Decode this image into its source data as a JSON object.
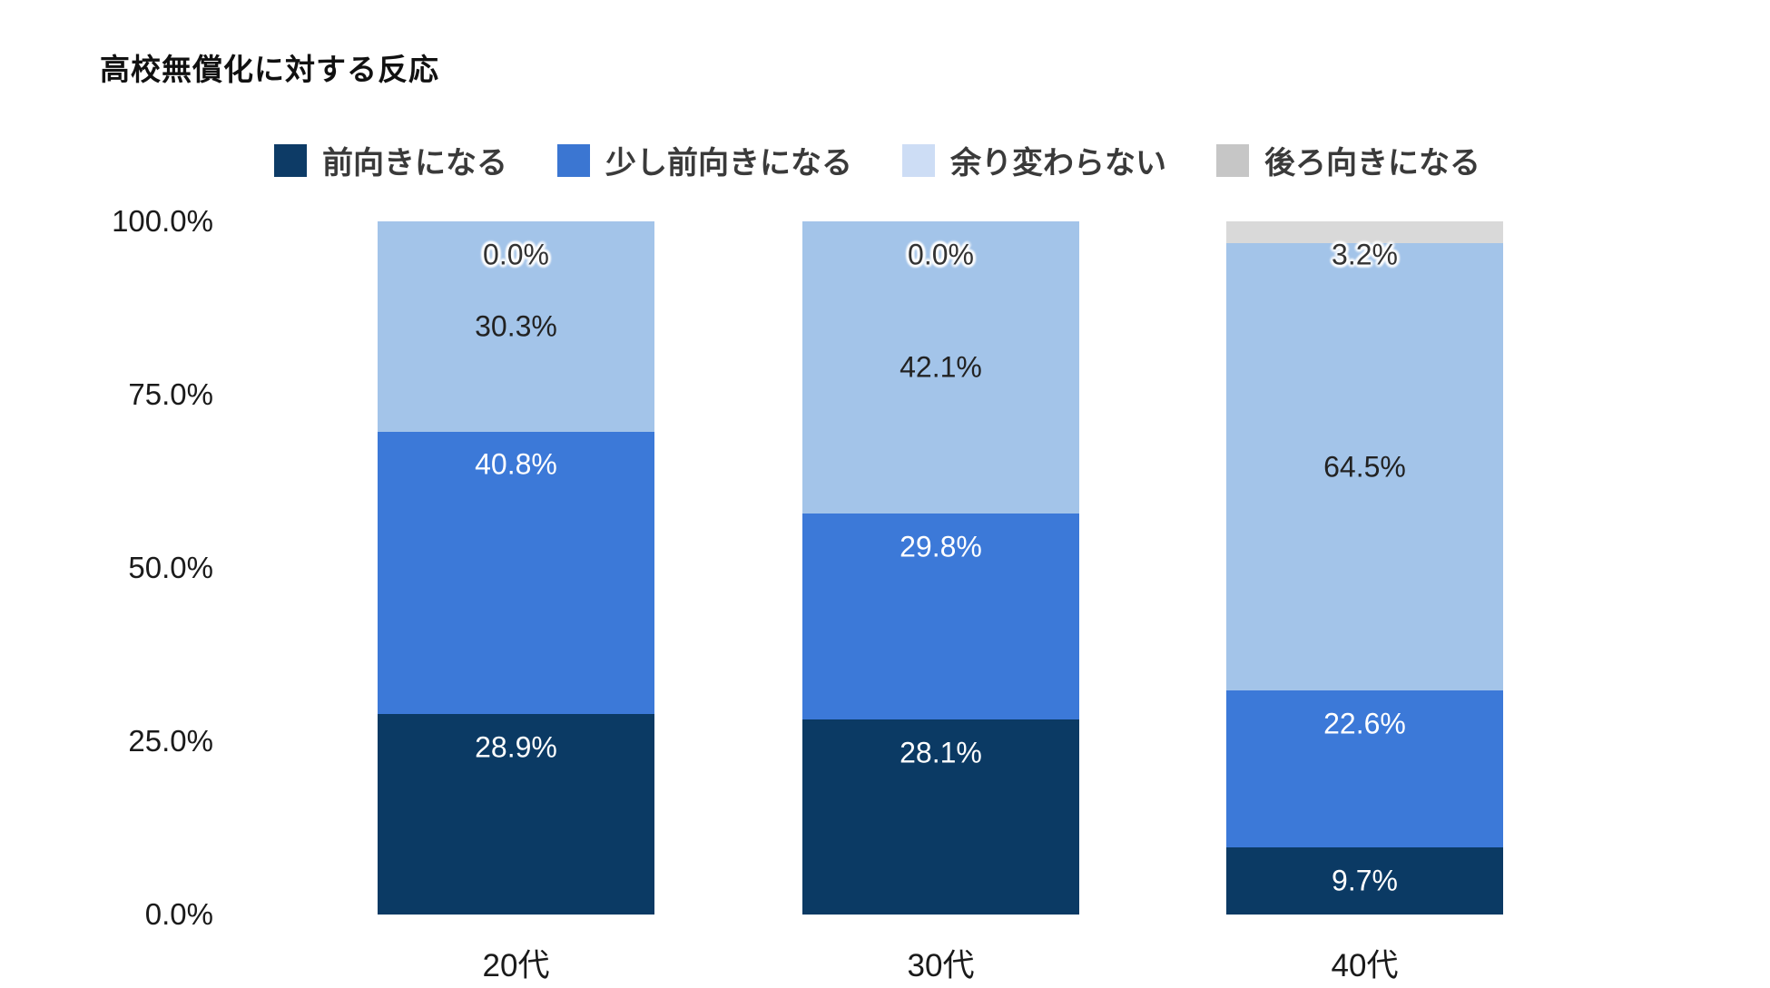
{
  "title": "高校無償化に対する反応",
  "chart_data": {
    "type": "bar",
    "subtype": "stacked-percentage-column",
    "title": "高校無償化に対する反応",
    "categories": [
      "20代",
      "30代",
      "40代"
    ],
    "series": [
      {
        "name": "前向きになる",
        "color": "#0b3a64",
        "legend_color": "#0d3b66",
        "text_color": "#ffffff",
        "label_style": "top",
        "halo": false,
        "values": [
          28.9,
          28.1,
          9.7
        ],
        "labels": [
          "28.9%",
          "28.1%",
          "9.7%"
        ]
      },
      {
        "name": "少し前向きになる",
        "color": "#3c79d8",
        "legend_color": "#3b76d2",
        "text_color": "#ffffff",
        "label_style": "top",
        "halo": false,
        "values": [
          40.8,
          29.8,
          22.6
        ],
        "labels": [
          "40.8%",
          "29.8%",
          "22.6%"
        ]
      },
      {
        "name": "余り変わらない",
        "color": "#a3c4e9",
        "legend_color": "#cdddf5",
        "text_color": "#222222",
        "label_style": "center",
        "halo": false,
        "values": [
          30.3,
          42.1,
          64.5
        ],
        "labels": [
          "30.3%",
          "42.1%",
          "64.5%"
        ]
      },
      {
        "name": "後ろ向きになる",
        "color": "#d9d9d9",
        "legend_color": "#c6c6c6",
        "text_color": "#333333",
        "label_style": "plot_top",
        "halo": true,
        "values": [
          0.0,
          0.0,
          3.2
        ],
        "labels": [
          "0.0%",
          "0.0%",
          "3.2%"
        ]
      }
    ],
    "y_axis": {
      "ylim": [
        0,
        100
      ],
      "grid": false,
      "ticks": [
        {
          "pct": 100,
          "label": "100.0%"
        },
        {
          "pct": 75,
          "label": "75.0%"
        },
        {
          "pct": 50,
          "label": "50.0%"
        },
        {
          "pct": 25,
          "label": "25.0%"
        },
        {
          "pct": 0,
          "label": "0.0%"
        }
      ]
    },
    "legend_position": "top"
  }
}
